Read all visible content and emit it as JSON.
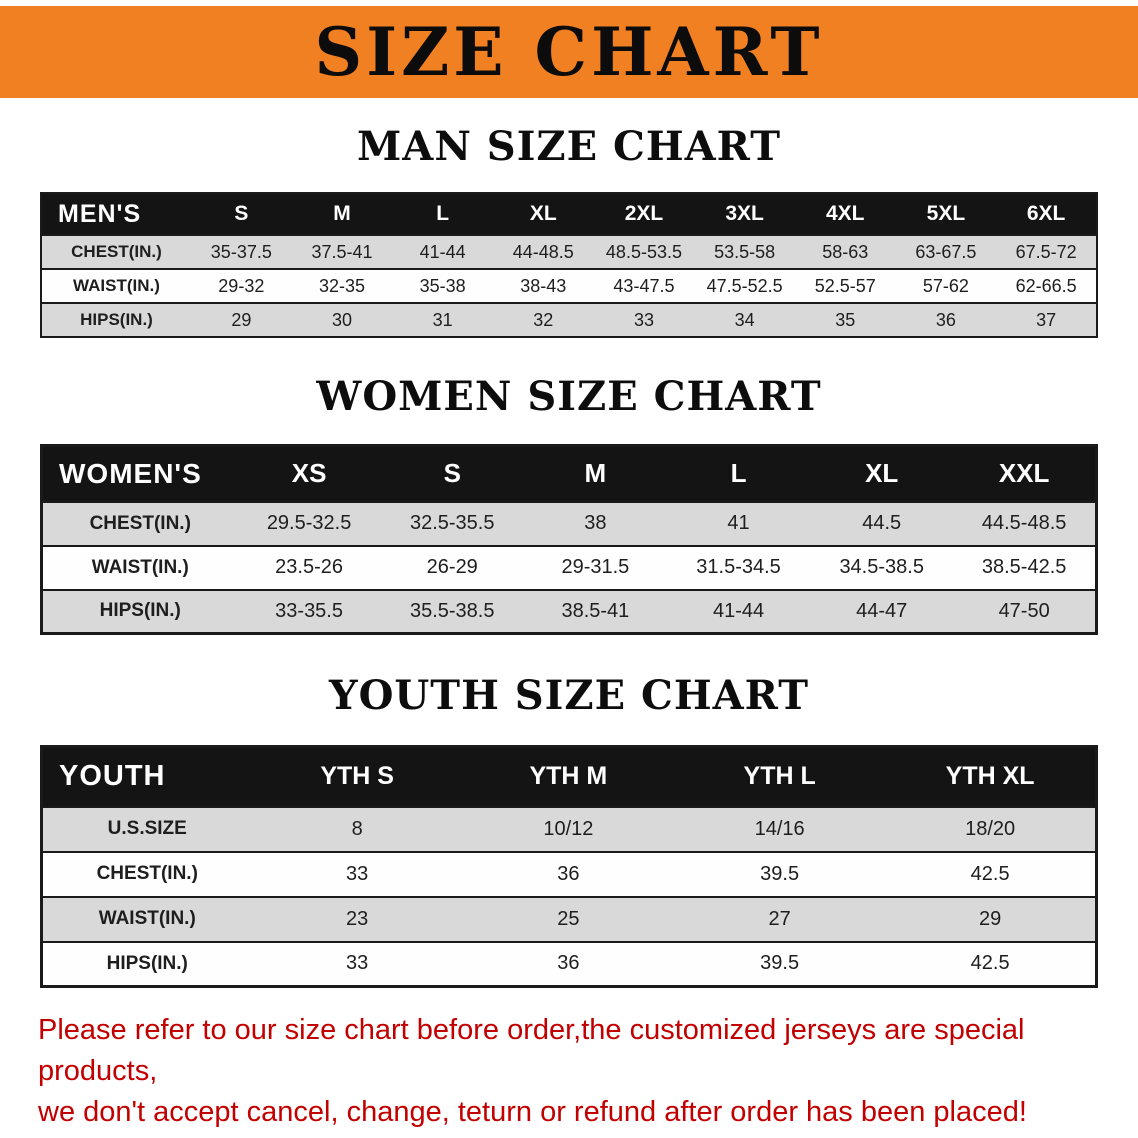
{
  "banner": {
    "title": "SIZE CHART"
  },
  "man": {
    "title": "MAN SIZE CHART",
    "header": [
      "MEN'S",
      "S",
      "M",
      "L",
      "XL",
      "2XL",
      "3XL",
      "4XL",
      "5XL",
      "6XL"
    ],
    "rows": [
      {
        "label": "CHEST(IN.)",
        "values": [
          "35-37.5",
          "37.5-41",
          "41-44",
          "44-48.5",
          "48.5-53.5",
          "53.5-58",
          "58-63",
          "63-67.5",
          "67.5-72"
        ]
      },
      {
        "label": "WAIST(IN.)",
        "values": [
          "29-32",
          "32-35",
          "35-38",
          "38-43",
          "43-47.5",
          "47.5-52.5",
          "52.5-57",
          "57-62",
          "62-66.5"
        ]
      },
      {
        "label": "HIPS(IN.)",
        "values": [
          "29",
          "30",
          "31",
          "32",
          "33",
          "34",
          "35",
          "36",
          "37"
        ]
      }
    ]
  },
  "women": {
    "title": "WOMEN SIZE CHART",
    "header": [
      "WOMEN'S",
      "XS",
      "S",
      "M",
      "L",
      "XL",
      "XXL"
    ],
    "rows": [
      {
        "label": "CHEST(IN.)",
        "values": [
          "29.5-32.5",
          "32.5-35.5",
          "38",
          "41",
          "44.5",
          "44.5-48.5"
        ]
      },
      {
        "label": "WAIST(IN.)",
        "values": [
          "23.5-26",
          "26-29",
          "29-31.5",
          "31.5-34.5",
          "34.5-38.5",
          "38.5-42.5"
        ]
      },
      {
        "label": "HIPS(IN.)",
        "values": [
          "33-35.5",
          "35.5-38.5",
          "38.5-41",
          "41-44",
          "44-47",
          "47-50"
        ]
      }
    ]
  },
  "youth": {
    "title": "YOUTH SIZE CHART",
    "header": [
      "YOUTH",
      "YTH S",
      "YTH M",
      "YTH L",
      "YTH XL"
    ],
    "rows": [
      {
        "label": "U.S.SIZE",
        "values": [
          "8",
          "10/12",
          "14/16",
          "18/20"
        ]
      },
      {
        "label": "CHEST(IN.)",
        "values": [
          "33",
          "36",
          "39.5",
          "42.5"
        ]
      },
      {
        "label": "WAIST(IN.)",
        "values": [
          "23",
          "25",
          "27",
          "29"
        ]
      },
      {
        "label": "HIPS(IN.)",
        "values": [
          "33",
          "36",
          "39.5",
          "42.5"
        ]
      }
    ]
  },
  "footer": {
    "line1": "Please refer to our size chart before order,the customized jerseys are special products,",
    "line2": "we don't accept cancel, change, teturn or refund after order has been placed!"
  },
  "colors": {
    "banner_bg": "#f08021",
    "header_bg": "#141414",
    "row_alt_bg": "#d9d9d9",
    "footer_text": "#c20000"
  }
}
